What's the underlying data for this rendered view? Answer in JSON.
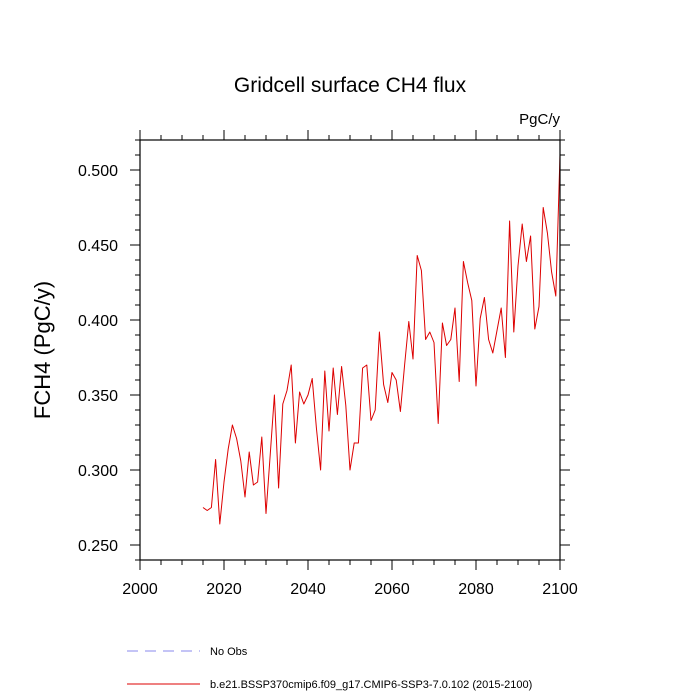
{
  "chart_data": {
    "type": "line",
    "title": "Gridcell surface CH4 flux",
    "units": "PgC/y",
    "xlabel": "",
    "ylabel": "FCH4  (PgC/y)",
    "xlim": [
      2000,
      2100
    ],
    "ylim": [
      0.24,
      0.52
    ],
    "x_ticks": [
      2000,
      2020,
      2040,
      2060,
      2080,
      2100
    ],
    "y_ticks": [
      0.25,
      0.3,
      0.35,
      0.4,
      0.45,
      0.5
    ],
    "x_tick_labels": [
      "2000",
      "2020",
      "2040",
      "2060",
      "2080",
      "2100"
    ],
    "y_tick_labels": [
      "0.250",
      "0.300",
      "0.350",
      "0.400",
      "0.450",
      "0.500"
    ],
    "grid": false,
    "legend_position": "bottom",
    "legend": [
      {
        "label": "No Obs",
        "color": "#8888ee",
        "dash": "dashed"
      },
      {
        "label": "b.e21.BSSP370cmip6.f09_g17.CMIP6-SSP3-7.0.102 (2015-2100)",
        "color": "#dd0000",
        "dash": "solid"
      }
    ],
    "series": [
      {
        "color": "#dd0000",
        "x": [
          2015,
          2016,
          2017,
          2018,
          2019,
          2020,
          2021,
          2022,
          2023,
          2024,
          2025,
          2026,
          2027,
          2028,
          2029,
          2030,
          2031,
          2032,
          2033,
          2034,
          2035,
          2036,
          2037,
          2038,
          2039,
          2040,
          2041,
          2042,
          2043,
          2044,
          2045,
          2046,
          2047,
          2048,
          2049,
          2050,
          2051,
          2052,
          2053,
          2054,
          2055,
          2056,
          2057,
          2058,
          2059,
          2060,
          2061,
          2062,
          2063,
          2064,
          2065,
          2066,
          2067,
          2068,
          2069,
          2070,
          2071,
          2072,
          2073,
          2074,
          2075,
          2076,
          2077,
          2078,
          2079,
          2080,
          2081,
          2082,
          2083,
          2084,
          2085,
          2086,
          2087,
          2088,
          2089,
          2090,
          2091,
          2092,
          2093,
          2094,
          2095,
          2096,
          2097,
          2098,
          2099,
          2100
        ],
        "y": [
          0.275,
          0.273,
          0.275,
          0.307,
          0.264,
          0.292,
          0.314,
          0.33,
          0.321,
          0.306,
          0.282,
          0.312,
          0.29,
          0.292,
          0.322,
          0.271,
          0.31,
          0.35,
          0.288,
          0.344,
          0.353,
          0.37,
          0.318,
          0.352,
          0.344,
          0.35,
          0.361,
          0.328,
          0.3,
          0.366,
          0.326,
          0.368,
          0.337,
          0.369,
          0.343,
          0.3,
          0.318,
          0.318,
          0.368,
          0.37,
          0.333,
          0.34,
          0.392,
          0.357,
          0.345,
          0.365,
          0.36,
          0.339,
          0.37,
          0.399,
          0.374,
          0.443,
          0.433,
          0.387,
          0.392,
          0.385,
          0.331,
          0.398,
          0.383,
          0.387,
          0.408,
          0.359,
          0.439,
          0.425,
          0.413,
          0.356,
          0.401,
          0.415,
          0.387,
          0.378,
          0.393,
          0.408,
          0.375,
          0.466,
          0.392,
          0.436,
          0.464,
          0.439,
          0.456,
          0.394,
          0.409,
          0.475,
          0.458,
          0.432,
          0.416,
          0.51
        ]
      }
    ]
  }
}
